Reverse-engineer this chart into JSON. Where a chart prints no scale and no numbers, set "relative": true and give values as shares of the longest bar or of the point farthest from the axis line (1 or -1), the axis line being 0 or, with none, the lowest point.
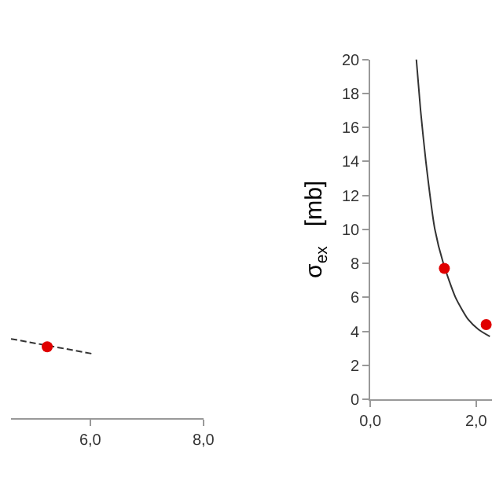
{
  "chart_data": [
    {
      "type": "line",
      "relative": true,
      "xlim": [
        4.6,
        8.0
      ],
      "xticks": [
        {
          "value": 6.0,
          "label": "6,0"
        },
        {
          "value": 8.0,
          "label": "8,0"
        }
      ],
      "tick_labels": "x",
      "series": [
        {
          "color": "#333333",
          "line_style": "dashed",
          "marker": "none",
          "x": [
            4.6,
            6.05
          ],
          "values": [
            1,
            0.81
          ]
        },
        {
          "type": "scatter",
          "color": "#e00000",
          "marker": "circle",
          "x": [
            5.24
          ],
          "values": [
            0.9
          ]
        }
      ]
    },
    {
      "type": "line",
      "ylabel": "σ$_{ex}$   [mb]",
      "xlim": [
        0,
        2.3
      ],
      "xticks": [
        {
          "value": 0,
          "label": "0,0"
        },
        {
          "value": 2.0,
          "label": "2,0"
        }
      ],
      "ylim": [
        0,
        20
      ],
      "yticks": [
        0,
        2,
        4,
        6,
        8,
        10,
        12,
        14,
        16,
        18,
        20
      ],
      "series": [
        {
          "color": "#333333",
          "line_style": "solid",
          "marker": "none",
          "x": [
            0.87,
            0.95,
            1.05,
            1.22,
            1.38,
            1.61,
            1.85,
            2.05,
            2.26
          ],
          "values": [
            20,
            17,
            14,
            10,
            8,
            6,
            4.7,
            4.1,
            3.7
          ]
        },
        {
          "type": "scatter",
          "color": "#e00000",
          "marker": "circle",
          "x": [
            1.4,
            2.19
          ],
          "values": [
            7.7,
            4.4
          ]
        }
      ]
    }
  ]
}
